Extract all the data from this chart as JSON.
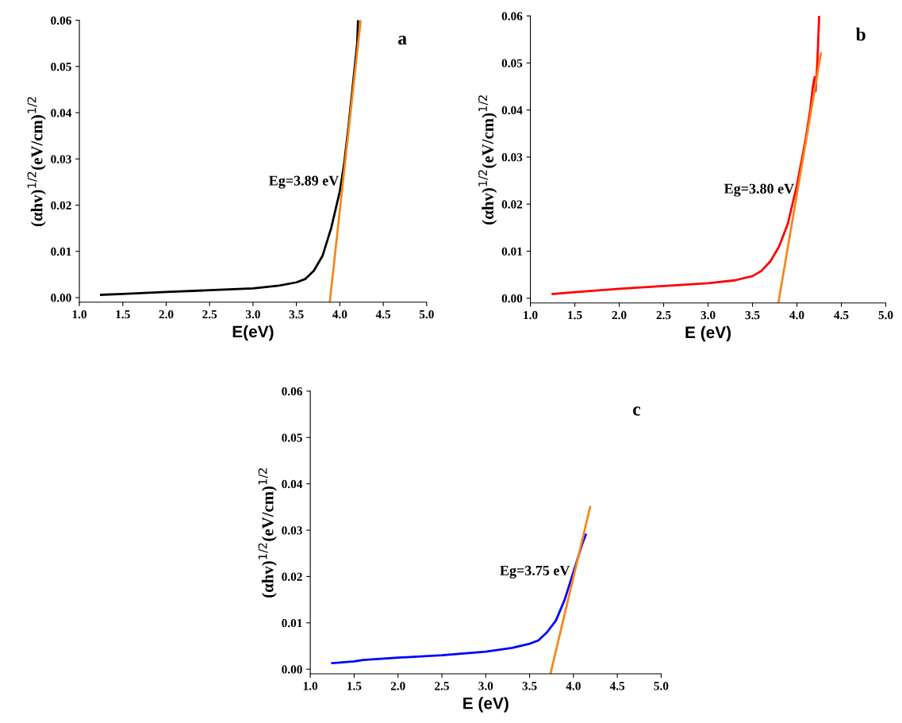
{
  "chart_data": [
    {
      "type": "line",
      "title": "a",
      "xlabel": "E(eV)",
      "ylabel": "(αhv)$^{1/2}$(eV/cm)$^{1/2}$",
      "xlim": [
        1.0,
        5.0
      ],
      "ylim": [
        -0.001,
        0.06
      ],
      "xticks": [
        {
          "value": 1,
          "label": "1.0"
        },
        1.5,
        {
          "value": 2,
          "label": "2.0"
        },
        2.5,
        {
          "value": 3,
          "label": "3.0"
        },
        3.5,
        {
          "value": 4,
          "label": "4.0"
        },
        4.5,
        {
          "value": 5,
          "label": "5.0"
        }
      ],
      "yticks": [
        {
          "value": 0,
          "label": "0.00"
        },
        {
          "value": 0.01,
          "label": "0.01"
        },
        {
          "value": 0.02,
          "label": "0.02"
        },
        {
          "value": 0.03,
          "label": "0.03"
        },
        {
          "value": 0.04,
          "label": "0.04"
        },
        {
          "value": 0.05,
          "label": "0.05"
        },
        {
          "value": 0.06,
          "label": "0.06"
        }
      ],
      "grid": false,
      "legend": false,
      "annotations": [
        {
          "text": "Eg=3.89 eV",
          "x": 3.99,
          "y": 0.025
        }
      ],
      "series": [
        {
          "color": "#000000",
          "x": [
            1.25,
            1.5,
            2.0,
            2.5,
            3.0,
            3.3,
            3.5,
            3.6,
            3.7,
            3.8,
            3.9,
            4.0,
            4.05,
            4.1,
            4.15,
            4.2,
            4.21
          ],
          "values": [
            0.0006,
            0.0008,
            0.0012,
            0.0016,
            0.002,
            0.0026,
            0.0033,
            0.004,
            0.0058,
            0.009,
            0.015,
            0.023,
            0.029,
            0.037,
            0.046,
            0.055,
            0.06
          ]
        },
        {
          "color": "#f7861c",
          "x": [
            3.884,
            4.24
          ],
          "values": [
            -0.001,
            0.06
          ]
        }
      ]
    },
    {
      "type": "line",
      "title": "b",
      "xlabel": "E (eV)",
      "ylabel": "(αhv)$^{1/2}$(eV/cm)$^{1/2}$",
      "xlim": [
        1.0,
        5.0
      ],
      "ylim": [
        -0.001,
        0.06
      ],
      "xticks": [
        {
          "value": 1,
          "label": "1.0"
        },
        1.5,
        {
          "value": 2,
          "label": "2.0"
        },
        2.5,
        {
          "value": 3,
          "label": "3.0"
        },
        3.5,
        {
          "value": 4,
          "label": "4.0"
        },
        4.5,
        {
          "value": 5,
          "label": "5.0"
        }
      ],
      "yticks": [
        {
          "value": 0,
          "label": "0.00"
        },
        {
          "value": 0.01,
          "label": "0.01"
        },
        {
          "value": 0.02,
          "label": "0.02"
        },
        {
          "value": 0.03,
          "label": "0.03"
        },
        {
          "value": 0.04,
          "label": "0.04"
        },
        {
          "value": 0.05,
          "label": "0.05"
        },
        {
          "value": 0.06,
          "label": "0.06"
        }
      ],
      "grid": false,
      "legend": false,
      "annotations": [
        {
          "text": "Eg=3.80 eV",
          "x": 3.97,
          "y": 0.023
        }
      ],
      "series": [
        {
          "color": "#ff0000",
          "x": [
            1.25,
            1.5,
            2.0,
            2.5,
            3.0,
            3.3,
            3.5,
            3.6,
            3.7,
            3.8,
            3.9,
            4.0,
            4.1,
            4.15,
            4.18,
            4.2,
            4.21,
            4.23,
            4.24,
            4.25
          ],
          "values": [
            0.0009,
            0.0013,
            0.002,
            0.0026,
            0.0032,
            0.0038,
            0.0047,
            0.0058,
            0.0078,
            0.011,
            0.016,
            0.024,
            0.034,
            0.04,
            0.045,
            0.047,
            0.044,
            0.05,
            0.055,
            0.06
          ]
        },
        {
          "color": "#f7861c",
          "x": [
            3.791,
            4.27
          ],
          "values": [
            -0.001,
            0.052
          ]
        }
      ]
    },
    {
      "type": "line",
      "title": "c",
      "xlabel": "E (eV)",
      "ylabel": "(αhv)$^{1/2}$(eV/cm)$^{1/2}$",
      "xlim": [
        1.0,
        5.0
      ],
      "ylim": [
        -0.001,
        0.06
      ],
      "xticks": [
        {
          "value": 1,
          "label": "1.0"
        },
        1.5,
        {
          "value": 2,
          "label": "2.0"
        },
        2.5,
        {
          "value": 3,
          "label": "3.0"
        },
        3.5,
        {
          "value": 4,
          "label": "4.0"
        },
        4.5,
        {
          "value": 5,
          "label": "5.0"
        }
      ],
      "yticks": [
        {
          "value": 0,
          "label": "0.00"
        },
        {
          "value": 0.01,
          "label": "0.01"
        },
        {
          "value": 0.02,
          "label": "0.02"
        },
        {
          "value": 0.03,
          "label": "0.03"
        },
        {
          "value": 0.04,
          "label": "0.04"
        },
        {
          "value": 0.05,
          "label": "0.05"
        },
        {
          "value": 0.06,
          "label": "0.06"
        }
      ],
      "grid": false,
      "legend": false,
      "annotations": [
        {
          "text": "Eg=3.75 eV",
          "x": 3.96,
          "y": 0.021
        }
      ],
      "series": [
        {
          "color": "#0000ff",
          "x": [
            1.25,
            1.5,
            1.6,
            2.0,
            2.5,
            3.0,
            3.3,
            3.5,
            3.6,
            3.7,
            3.8,
            3.9,
            4.0,
            4.1,
            4.14
          ],
          "values": [
            0.0013,
            0.0017,
            0.002,
            0.0025,
            0.003,
            0.0038,
            0.0046,
            0.0055,
            0.0062,
            0.008,
            0.0105,
            0.015,
            0.021,
            0.027,
            0.029
          ]
        },
        {
          "color": "#f7861c",
          "x": [
            3.738,
            4.19
          ],
          "values": [
            -0.001,
            0.035
          ]
        }
      ]
    }
  ]
}
